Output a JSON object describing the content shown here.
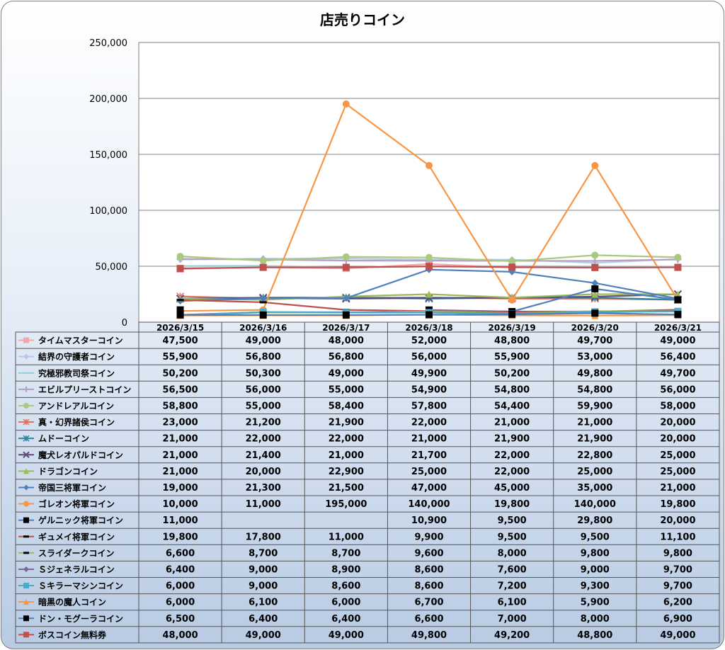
{
  "chart_data": {
    "type": "line",
    "title": "店売りコイン",
    "ylim": [
      0,
      250000
    ],
    "yticks": [
      "0",
      "50,000",
      "100,000",
      "150,000",
      "200,000",
      "250,000"
    ],
    "grid": true,
    "legend": "data-table",
    "categories": [
      "2026/3/15",
      "2026/3/16",
      "2026/3/17",
      "2026/3/18",
      "2026/3/19",
      "2026/3/20",
      "2026/3/21"
    ],
    "series": [
      {
        "name": "タイムマスターコイン",
        "color": "#f4a6a6",
        "marker": "square",
        "values": [
          47500,
          49000,
          48000,
          52000,
          48800,
          49700,
          49000
        ],
        "labels": [
          "47,500",
          "49,000",
          "48,000",
          "52,000",
          "48,800",
          "49,700",
          "49,000"
        ]
      },
      {
        "name": "結界の守護者コイン",
        "color": "#b8c9e3",
        "marker": "diamond",
        "values": [
          55900,
          56800,
          56800,
          56000,
          55900,
          53000,
          56400
        ],
        "labels": [
          "55,900",
          "56,800",
          "56,800",
          "56,000",
          "55,900",
          "53,000",
          "56,400"
        ]
      },
      {
        "name": "究極邪教司祭コイン",
        "color": "#92cddc",
        "marker": "none",
        "values": [
          50200,
          50300,
          49000,
          49900,
          50200,
          49800,
          49700
        ],
        "labels": [
          "50,200",
          "50,300",
          "49,000",
          "49,900",
          "50,200",
          "49,800",
          "49,700"
        ]
      },
      {
        "name": "エビルプリーストコイン",
        "color": "#b3a2c7",
        "marker": "plus",
        "values": [
          56500,
          56000,
          55000,
          54900,
          54800,
          54800,
          56000
        ],
        "labels": [
          "56,500",
          "56,000",
          "55,000",
          "54,900",
          "54,800",
          "54,800",
          "56,000"
        ]
      },
      {
        "name": "アンドレアルコイン",
        "color": "#a9c97e",
        "marker": "circle",
        "values": [
          58800,
          55000,
          58400,
          57800,
          54400,
          59900,
          58000
        ],
        "labels": [
          "58,800",
          "55,000",
          "58,400",
          "57,800",
          "54,400",
          "59,900",
          "58,000"
        ]
      },
      {
        "name": "真・幻界諸侯コイン",
        "color": "#e6735f",
        "marker": "star",
        "values": [
          23000,
          21200,
          21900,
          22000,
          21000,
          21000,
          20000
        ],
        "labels": [
          "23,000",
          "21,200",
          "21,900",
          "22,000",
          "21,000",
          "21,000",
          "20,000"
        ]
      },
      {
        "name": "ムドーコイン",
        "color": "#31859c",
        "marker": "star",
        "values": [
          21000,
          22000,
          22000,
          21000,
          21900,
          21900,
          20000
        ],
        "labels": [
          "21,000",
          "22,000",
          "22,000",
          "21,000",
          "21,900",
          "21,900",
          "20,000"
        ]
      },
      {
        "name": "魔犬レオパルドコイン",
        "color": "#604a7b",
        "marker": "x",
        "values": [
          21000,
          21400,
          21000,
          21700,
          22000,
          22800,
          25000
        ],
        "labels": [
          "21,000",
          "21,400",
          "21,000",
          "21,700",
          "22,000",
          "22,800",
          "25,000"
        ]
      },
      {
        "name": "ドラゴンコイン",
        "color": "#9bbb59",
        "marker": "triangle",
        "values": [
          21000,
          20000,
          22900,
          25000,
          22000,
          25000,
          25000
        ],
        "labels": [
          "21,000",
          "20,000",
          "22,900",
          "25,000",
          "22,000",
          "25,000",
          "25,000"
        ]
      },
      {
        "name": "帝国三将軍コイン",
        "color": "#4f81bd",
        "marker": "diamond",
        "values": [
          19000,
          21300,
          21500,
          47000,
          45000,
          35000,
          21000
        ],
        "labels": [
          "19,000",
          "21,300",
          "21,500",
          "47,000",
          "45,000",
          "35,000",
          "21,000"
        ]
      },
      {
        "name": "ゴレオン将軍コイン",
        "color": "#f79646",
        "marker": "circle",
        "values": [
          10000,
          11000,
          195000,
          140000,
          19800,
          140000,
          19800
        ],
        "labels": [
          "10,000",
          "11,000",
          "195,000",
          "140,000",
          "19,800",
          "140,000",
          "19,800"
        ]
      },
      {
        "name": "ゲルニック将軍コイン",
        "color": "#4f81bd",
        "marker": "square-black",
        "values": [
          11000,
          null,
          null,
          10900,
          9500,
          29800,
          20000
        ],
        "labels": [
          "11,000",
          "",
          "",
          "10,900",
          "9,500",
          "29,800",
          "20,000"
        ]
      },
      {
        "name": "ギュメイ将軍コイン",
        "color": "#c0504d",
        "marker": "dash-black",
        "values": [
          19800,
          17800,
          11000,
          9900,
          9500,
          9500,
          11100
        ],
        "labels": [
          "19,800",
          "17,800",
          "11,000",
          "9,900",
          "9,500",
          "9,500",
          "11,100"
        ]
      },
      {
        "name": "スライダークコイン",
        "color": "#9bbb59",
        "marker": "dash-black",
        "values": [
          6600,
          8700,
          8700,
          9600,
          8000,
          9800,
          9800
        ],
        "labels": [
          "6,600",
          "8,700",
          "8,700",
          "9,600",
          "8,000",
          "9,800",
          "9,800"
        ]
      },
      {
        "name": "Ｓジェネラルコイン",
        "color": "#8064a2",
        "marker": "diamond",
        "values": [
          6400,
          9000,
          8900,
          8600,
          7600,
          9000,
          9700
        ],
        "labels": [
          "6,400",
          "9,000",
          "8,900",
          "8,600",
          "7,600",
          "9,000",
          "9,700"
        ]
      },
      {
        "name": "Ｓキラーマシンコイン",
        "color": "#4bacc6",
        "marker": "square",
        "values": [
          6000,
          9000,
          8600,
          8600,
          7200,
          9300,
          9700
        ],
        "labels": [
          "6,000",
          "9,000",
          "8,600",
          "8,600",
          "7,200",
          "9,300",
          "9,700"
        ]
      },
      {
        "name": "暗黒の魔人コイン",
        "color": "#f79646",
        "marker": "triangle",
        "values": [
          6000,
          6100,
          6000,
          6700,
          6100,
          5900,
          6200
        ],
        "labels": [
          "6,000",
          "6,100",
          "6,000",
          "6,700",
          "6,100",
          "5,900",
          "6,200"
        ]
      },
      {
        "name": "ドン・モグーラコイン",
        "color": "#4f81bd",
        "marker": "square-black",
        "values": [
          6500,
          6400,
          6400,
          6600,
          7000,
          8000,
          6900
        ],
        "labels": [
          "6,500",
          "6,400",
          "6,400",
          "6,600",
          "7,000",
          "8,000",
          "6,900"
        ]
      },
      {
        "name": "ボスコイン無料券",
        "color": "#c0504d",
        "marker": "square",
        "values": [
          48000,
          49000,
          49000,
          49800,
          49200,
          48800,
          49000
        ],
        "labels": [
          "48,000",
          "49,000",
          "49,000",
          "49,800",
          "49,200",
          "48,800",
          "49,000"
        ]
      }
    ]
  }
}
